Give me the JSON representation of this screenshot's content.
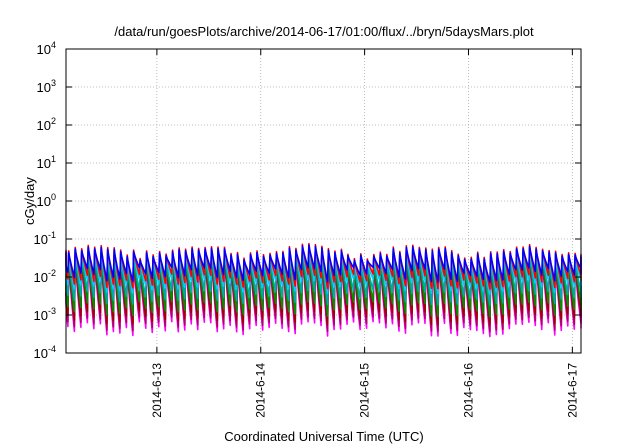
{
  "chart_data": {
    "type": "line",
    "title": "/data/run/goesPlots/archive/2014-06-17/01:00/flux/../bryn/5daysMars.plot",
    "xlabel": "Coordinated Universal Time (UTC)",
    "ylabel": "cGy/day",
    "y_scale": "log",
    "ylim": [
      0.0001,
      10000
    ],
    "xlim": [
      "2014-06-12 03:00",
      "2014-06-17 02:00"
    ],
    "grid": true,
    "legend": "none",
    "y_ticks": [
      {
        "base": "10",
        "exp": "-4",
        "value": 0.0001
      },
      {
        "base": "10",
        "exp": "-3",
        "value": 0.001
      },
      {
        "base": "10",
        "exp": "-2",
        "value": 0.01
      },
      {
        "base": "10",
        "exp": "-1",
        "value": 0.1
      },
      {
        "base": "10",
        "exp": "0",
        "value": 1
      },
      {
        "base": "10",
        "exp": "1",
        "value": 10
      },
      {
        "base": "10",
        "exp": "2",
        "value": 100
      },
      {
        "base": "10",
        "exp": "3",
        "value": 1000
      },
      {
        "base": "10",
        "exp": "4",
        "value": 10000
      }
    ],
    "x_ticks": [
      {
        "label": "2014-6-13",
        "date": "2014-06-13 00:00"
      },
      {
        "label": "2014-6-14",
        "date": "2014-06-14 00:00"
      },
      {
        "label": "2014-6-15",
        "date": "2014-06-15 00:00"
      },
      {
        "label": "2014-6-16",
        "date": "2014-06-16 00:00"
      },
      {
        "label": "2014-6-17",
        "date": "2014-06-17 00:00"
      }
    ],
    "sawtooth": {
      "period_hours": 1.5,
      "notes": "Each series rises sharply at the start of every period and decays roughly exponentially until the next rise."
    },
    "series": [
      {
        "color": "#ff00ff",
        "peak": 0.028,
        "trough": 0.00045
      },
      {
        "color": "#b0006b",
        "peak": 0.032,
        "trough": 0.0006
      },
      {
        "color": "#a00000",
        "peak": 0.045,
        "trough": 0.0009
      },
      {
        "color": "#009000",
        "peak": 0.035,
        "trough": 0.0015
      },
      {
        "color": "#00aaaa",
        "peak": 0.038,
        "trough": 0.003
      },
      {
        "color": "#00ccff",
        "peak": 0.042,
        "trough": 0.006
      },
      {
        "color": "#ff0000",
        "peak": 0.055,
        "trough": 0.008
      },
      {
        "color": "#0000ff",
        "peak": 0.05,
        "trough": 0.012
      }
    ]
  }
}
